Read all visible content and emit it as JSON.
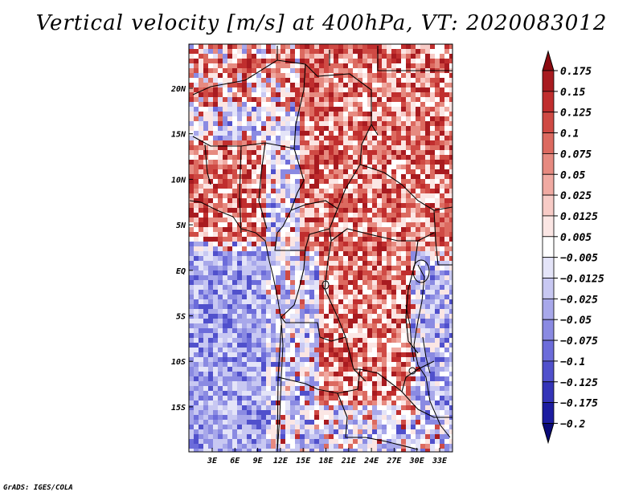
{
  "title": "Vertical velocity [m/s] at 400hPa, VT: 2020083012",
  "footer": "GrADS: IGES/COLA",
  "map": {
    "lat_labels": [
      "20N",
      "15N",
      "10N",
      "5N",
      "EQ",
      "5S",
      "10S",
      "15S"
    ],
    "lon_labels": [
      "3E",
      "6E",
      "9E",
      "12E",
      "15E",
      "18E",
      "21E",
      "24E",
      "27E",
      "30E",
      "33E"
    ]
  },
  "colorbar": {
    "labels": [
      "0.175",
      "0.15",
      "0.125",
      "0.1",
      "0.075",
      "0.05",
      "0.025",
      "0.0125",
      "0.005",
      "-0.005",
      "-0.0125",
      "-0.025",
      "-0.05",
      "-0.075",
      "-0.1",
      "-0.125",
      "-0.175",
      "-0.2"
    ],
    "colors": [
      "#8b0a10",
      "#a81b20",
      "#c02e2e",
      "#cf4a44",
      "#dc6a60",
      "#e68a80",
      "#f0aaa2",
      "#f7cbc6",
      "#fbe6e4",
      "#ffffff",
      "#e4e4f8",
      "#c8c8f2",
      "#a8a8ea",
      "#8a8ae2",
      "#6c6cda",
      "#5050cc",
      "#3434b8",
      "#1c1ca0",
      "#0a0a78"
    ]
  }
}
